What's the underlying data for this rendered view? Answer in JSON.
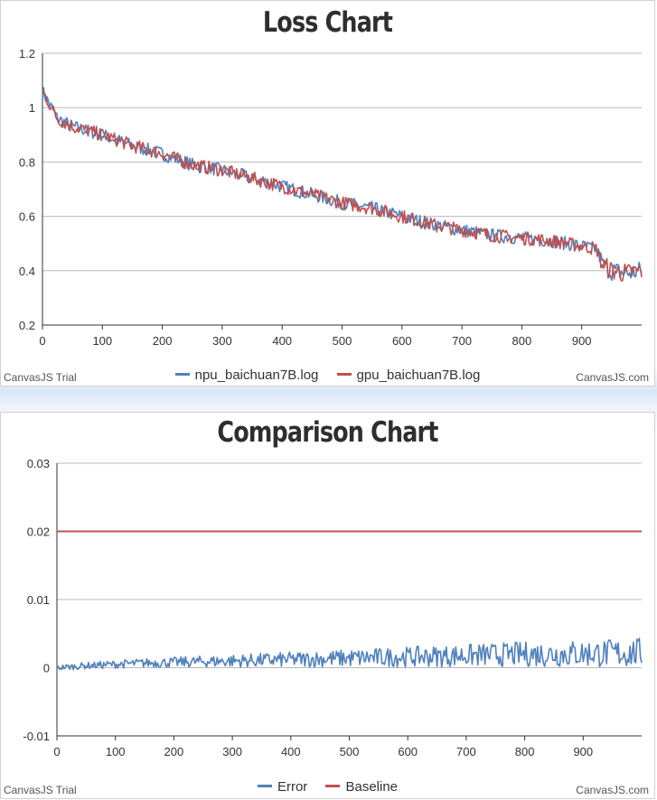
{
  "chart_data": [
    {
      "type": "line",
      "title": "Loss Chart",
      "xlabel": "",
      "ylabel": "",
      "xlim": [
        0,
        1000
      ],
      "ylim": [
        0.2,
        1.2
      ],
      "x_ticks": [
        "0",
        "100",
        "200",
        "300",
        "400",
        "500",
        "600",
        "700",
        "800",
        "900"
      ],
      "y_ticks": [
        "0.2",
        "0.4",
        "0.6",
        "0.8",
        "1",
        "1.2"
      ],
      "grid": true,
      "legend_position": "bottom",
      "series": [
        {
          "name": "npu_baichuan7B.log",
          "color": "#4f81bc",
          "x": [
            0,
            25,
            50,
            100,
            150,
            200,
            250,
            300,
            350,
            400,
            450,
            500,
            550,
            600,
            650,
            700,
            750,
            800,
            850,
            900,
            925,
            935,
            950,
            975,
            1000
          ],
          "values": [
            1.06,
            0.96,
            0.93,
            0.9,
            0.86,
            0.83,
            0.79,
            0.77,
            0.74,
            0.71,
            0.68,
            0.65,
            0.63,
            0.6,
            0.57,
            0.55,
            0.53,
            0.52,
            0.51,
            0.49,
            0.48,
            0.42,
            0.4,
            0.39,
            0.4
          ]
        },
        {
          "name": "gpu_baichuan7B.log",
          "color": "#c0504e",
          "x": [
            0,
            25,
            50,
            100,
            150,
            200,
            250,
            300,
            350,
            400,
            450,
            500,
            550,
            600,
            650,
            700,
            750,
            800,
            850,
            900,
            925,
            935,
            950,
            975,
            1000
          ],
          "values": [
            1.06,
            0.96,
            0.93,
            0.9,
            0.86,
            0.83,
            0.79,
            0.77,
            0.74,
            0.71,
            0.68,
            0.65,
            0.63,
            0.6,
            0.57,
            0.55,
            0.53,
            0.52,
            0.51,
            0.49,
            0.48,
            0.42,
            0.4,
            0.39,
            0.4
          ]
        }
      ]
    },
    {
      "type": "line",
      "title": "Comparison Chart",
      "xlabel": "",
      "ylabel": "",
      "xlim": [
        0,
        1000
      ],
      "ylim": [
        -0.01,
        0.03
      ],
      "x_ticks": [
        "0",
        "100",
        "200",
        "300",
        "400",
        "500",
        "600",
        "700",
        "800",
        "900"
      ],
      "y_ticks": [
        "-0.01",
        "0",
        "0.01",
        "0.02",
        "0.03"
      ],
      "grid": true,
      "legend_position": "bottom",
      "series": [
        {
          "name": "Error",
          "color": "#4f81bc",
          "x": [
            0,
            50,
            100,
            150,
            200,
            250,
            300,
            350,
            400,
            450,
            500,
            550,
            600,
            650,
            700,
            750,
            800,
            850,
            900,
            950,
            1000
          ],
          "values": [
            0.0,
            0.0003,
            0.0005,
            0.0007,
            0.0008,
            0.0009,
            0.001,
            0.0011,
            0.0012,
            0.0013,
            0.0014,
            0.0015,
            0.0016,
            0.0017,
            0.0018,
            0.0019,
            0.002,
            0.002,
            0.0021,
            0.0021,
            0.0022
          ]
        },
        {
          "name": "Baseline",
          "color": "#c0504e",
          "x": [
            0,
            1000
          ],
          "values": [
            0.02,
            0.02
          ]
        }
      ]
    }
  ],
  "credits": {
    "left": "CanvasJS Trial",
    "right": "CanvasJS.com"
  }
}
